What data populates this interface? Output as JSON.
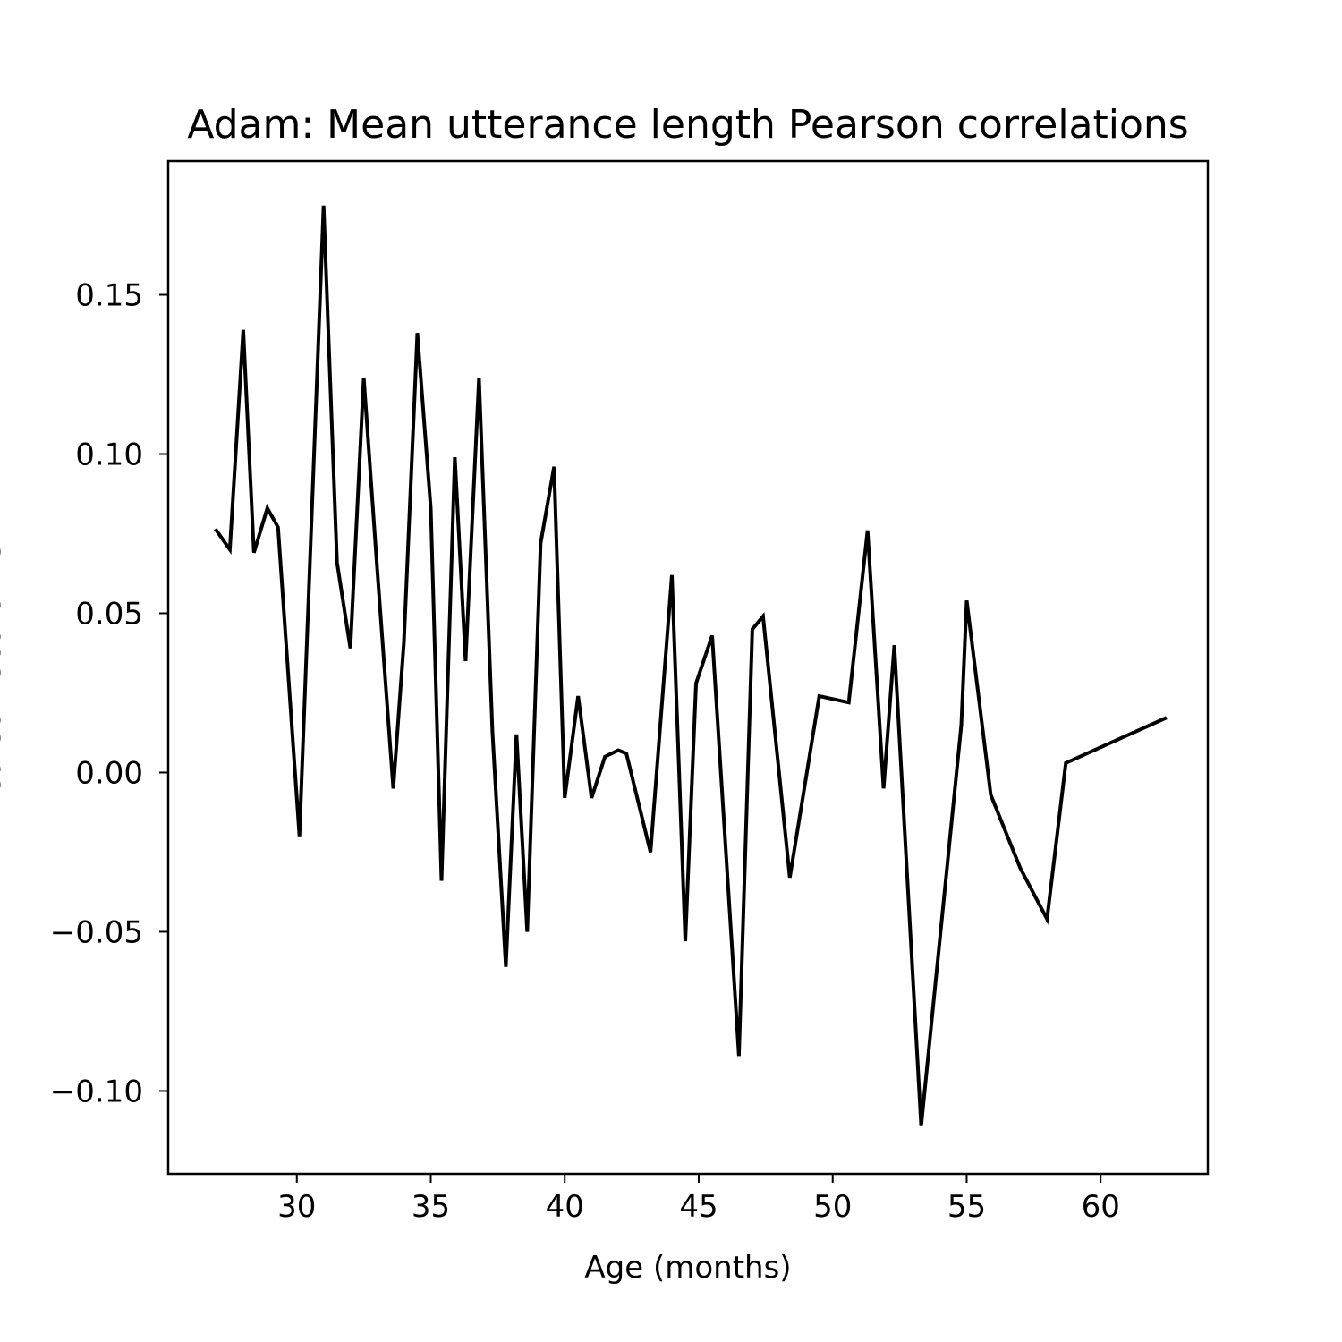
{
  "chart_data": {
    "type": "line",
    "title": "Adam: Mean utterance length Pearson correlations",
    "xlabel": "Age (months)",
    "ylabel": "Pearson Score MSE",
    "xlim": [
      25.2,
      64.0
    ],
    "ylim": [
      -0.126,
      0.192
    ],
    "grid": false,
    "legend": "none",
    "line_color": "#000000",
    "xticks": [
      30,
      35,
      40,
      45,
      50,
      55,
      60
    ],
    "xtick_labels": [
      "30",
      "35",
      "40",
      "45",
      "50",
      "55",
      "60"
    ],
    "yticks": [
      -0.1,
      -0.05,
      0.0,
      0.05,
      0.1,
      0.15
    ],
    "ytick_labels": [
      "−0.10",
      "−0.05",
      "0.00",
      "0.05",
      "0.10",
      "0.15"
    ],
    "series": [
      {
        "x": [
          27.0,
          27.5,
          28.0,
          28.4,
          28.9,
          29.3,
          30.1,
          31.0,
          31.5,
          32.0,
          32.5,
          33.0,
          33.6,
          34.0,
          34.5,
          35.0,
          35.4,
          35.9,
          36.3,
          36.8,
          37.3,
          37.8,
          38.2,
          38.6,
          39.1,
          39.6,
          40.0,
          40.5,
          41.0,
          41.5,
          42.0,
          42.3,
          43.2,
          44.0,
          44.5,
          44.9,
          45.5,
          46.5,
          47.0,
          47.4,
          48.4,
          49.5,
          50.6,
          51.3,
          51.9,
          52.3,
          53.3,
          54.8,
          55.0,
          55.9,
          57.0,
          58.0,
          58.7,
          62.4
        ],
        "y": [
          0.076,
          0.07,
          0.139,
          0.069,
          0.083,
          0.077,
          -0.02,
          0.178,
          0.066,
          0.039,
          0.124,
          0.064,
          -0.005,
          0.041,
          0.138,
          0.083,
          -0.034,
          0.099,
          0.035,
          0.124,
          0.013,
          -0.061,
          0.012,
          -0.05,
          0.072,
          0.096,
          -0.008,
          0.024,
          -0.008,
          0.005,
          0.007,
          0.006,
          -0.025,
          0.062,
          -0.053,
          0.028,
          0.043,
          -0.089,
          0.045,
          0.049,
          -0.033,
          0.024,
          0.022,
          0.076,
          -0.005,
          0.04,
          -0.111,
          0.015,
          0.054,
          -0.007,
          -0.03,
          -0.046,
          0.003,
          0.017
        ]
      }
    ]
  }
}
